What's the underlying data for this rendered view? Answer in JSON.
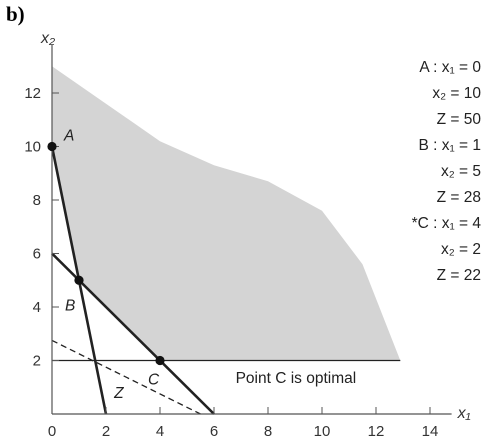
{
  "panel_label": "b)",
  "chart_data": {
    "type": "line",
    "title": "",
    "xlabel": "x₁",
    "ylabel": "x₂",
    "xlim": [
      0,
      14.8
    ],
    "ylim": [
      0,
      13.8
    ],
    "x_ticks": [
      0,
      2,
      4,
      6,
      8,
      10,
      12,
      14
    ],
    "y_ticks": [
      2,
      4,
      6,
      8,
      10,
      12
    ],
    "grid": false,
    "colors": {
      "feasible_region": "#d4d4d4",
      "lines": "#222222"
    },
    "feasible_region_boundary": [
      {
        "x": 0,
        "y": 13
      },
      {
        "x": 2,
        "y": 11.6
      },
      {
        "x": 4,
        "y": 10.2
      },
      {
        "x": 6,
        "y": 9.3
      },
      {
        "x": 8,
        "y": 8.7
      },
      {
        "x": 10,
        "y": 7.6
      },
      {
        "x": 11.5,
        "y": 5.6
      },
      {
        "x": 12.9,
        "y": 2
      },
      {
        "x": 4,
        "y": 2
      },
      {
        "x": 1,
        "y": 5
      },
      {
        "x": 0,
        "y": 10
      }
    ],
    "series": [
      {
        "x": [
          0,
          2
        ],
        "y": [
          10,
          0
        ],
        "style": "solid-bold"
      },
      {
        "x": [
          0,
          6
        ],
        "y": [
          6,
          0
        ],
        "style": "solid-bold"
      },
      {
        "x": [
          0,
          12.9
        ],
        "y": [
          2,
          2
        ],
        "style": "solid-thin"
      },
      {
        "x": [
          0,
          5.5
        ],
        "y": [
          2.75,
          0
        ],
        "style": "dashed"
      }
    ],
    "points": [
      {
        "label": "A",
        "x": 0,
        "y": 10
      },
      {
        "label": "B",
        "x": 1,
        "y": 5
      },
      {
        "label": "C",
        "x": 4,
        "y": 2
      }
    ],
    "line_label": {
      "text": "Z",
      "x": 2.3,
      "y": 0.6
    },
    "annotations": [
      {
        "text": "A : x₁ = 0"
      },
      {
        "text": "x₂ = 10"
      },
      {
        "text": "Z = 50"
      },
      {
        "text": "B : x₁ = 1"
      },
      {
        "text": "x₂ = 5"
      },
      {
        "text": "Z = 28"
      },
      {
        "text": "*C : x₁ = 4"
      },
      {
        "text": "x₂ = 2"
      },
      {
        "text": "Z = 22"
      }
    ],
    "note": "Point C is optimal"
  }
}
